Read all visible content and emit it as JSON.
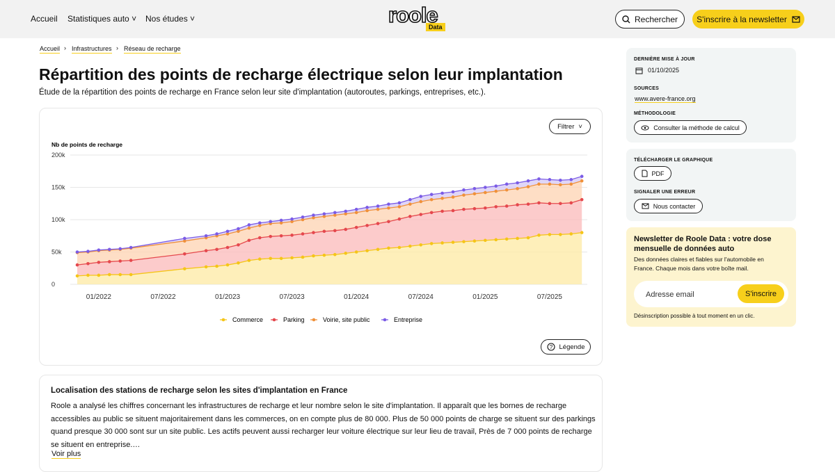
{
  "header": {
    "nav": [
      "Accueil",
      "Statistiques auto",
      "Nos études"
    ],
    "logo": "roole",
    "logo_badge": "Data",
    "search": "Rechercher",
    "newsletter_button": "S'inscrire à la newsletter"
  },
  "breadcrumbs": [
    "Accueil",
    "Infrastructures",
    "Réseau de recharge"
  ],
  "title": "Répartition des points de recharge électrique selon leur implantation",
  "subtitle": "Étude de la répartition des points de recharge en France selon leur site d'implantation (autoroutes, parkings, entreprises, etc.).",
  "chart_data": {
    "type": "area",
    "stacked": true,
    "y_label": "Nb de points de recharge",
    "filter_button": "Filtrer",
    "legend_button": "Légende",
    "x": [
      "11/2021",
      "12/2021",
      "01/2022",
      "02/2022",
      "03/2022",
      "04/2022",
      "09/2022",
      "11/2022",
      "12/2022",
      "01/2023",
      "02/2023",
      "03/2023",
      "04/2023",
      "05/2023",
      "06/2023",
      "07/2023",
      "08/2023",
      "09/2023",
      "10/2023",
      "11/2023",
      "12/2023",
      "01/2024",
      "02/2024",
      "03/2024",
      "04/2024",
      "05/2024",
      "06/2024",
      "07/2024",
      "08/2024",
      "09/2024",
      "10/2024",
      "11/2024",
      "12/2024",
      "01/2025",
      "02/2025",
      "03/2025",
      "04/2025",
      "05/2025",
      "06/2025",
      "07/2025",
      "08/2025",
      "09/2025",
      "10/2025"
    ],
    "xticks": [
      "01/2022",
      "07/2022",
      "01/2023",
      "07/2023",
      "01/2024",
      "07/2024",
      "01/2025",
      "07/2025"
    ],
    "ylim": [
      0,
      200000
    ],
    "yticks": [
      0,
      {
        "value": 50000,
        "label": "50k"
      },
      {
        "value": 100000,
        "label": "100k"
      },
      {
        "value": 150000,
        "label": "150k"
      },
      {
        "value": 200000,
        "label": "200k"
      }
    ],
    "grid": true,
    "legend": "bottom",
    "series": [
      {
        "name": "Commerce",
        "color": "#f5c518",
        "fill": "#fde9a3",
        "values": [
          13000,
          14000,
          14000,
          15000,
          15000,
          15000,
          24000,
          27000,
          28000,
          30000,
          33000,
          37000,
          39000,
          40000,
          40000,
          41000,
          42000,
          44000,
          45000,
          46000,
          48000,
          50000,
          52000,
          54000,
          56000,
          57000,
          59000,
          61000,
          63000,
          64000,
          65000,
          66000,
          67000,
          68000,
          69000,
          70000,
          71000,
          72000,
          76000,
          77000,
          77000,
          78000,
          80000
        ]
      },
      {
        "name": "Parking",
        "color": "#e5484d",
        "fill": "#fbb9b9",
        "values": [
          17000,
          18000,
          20000,
          20000,
          21000,
          22000,
          23000,
          25000,
          26000,
          27000,
          28000,
          31000,
          33000,
          34000,
          35000,
          35000,
          36000,
          36000,
          37000,
          37000,
          37000,
          38000,
          39000,
          40000,
          41000,
          44000,
          46000,
          47000,
          48000,
          49000,
          49000,
          50000,
          50000,
          50000,
          51000,
          51000,
          52000,
          52000,
          50000,
          48000,
          48000,
          48000,
          51000
        ]
      },
      {
        "name": "Voirie, site public",
        "color": "#f0913a",
        "fill": "#fdd3b2",
        "values": [
          19000,
          18000,
          18000,
          18000,
          18000,
          19000,
          20000,
          20000,
          21000,
          21000,
          21000,
          19000,
          19000,
          20000,
          20000,
          21000,
          22000,
          23000,
          23000,
          24000,
          24000,
          23000,
          23000,
          22000,
          21000,
          19000,
          19000,
          20000,
          20000,
          20000,
          21000,
          22000,
          23000,
          24000,
          24000,
          25000,
          25000,
          27000,
          29000,
          30000,
          29000,
          29000,
          29000
        ]
      },
      {
        "name": "Entreprise",
        "color": "#7b5ce6",
        "fill": "#d6c8f4",
        "values": [
          1000,
          1000,
          1000,
          1000,
          1000,
          1000,
          4000,
          3000,
          3000,
          4000,
          4000,
          5000,
          4000,
          3000,
          4000,
          4000,
          4000,
          4000,
          4000,
          4000,
          4000,
          5000,
          5000,
          5000,
          6000,
          6000,
          7000,
          8000,
          8000,
          8000,
          8000,
          8000,
          8000,
          8000,
          8000,
          9000,
          9000,
          9000,
          8000,
          7000,
          7000,
          7000,
          7000
        ]
      }
    ]
  },
  "sidebar": {
    "updated_label": "DERNIÈRE MISE À JOUR",
    "updated_date": "01/10/2025",
    "sources_label": "SOURCES",
    "source_link": "www.avere-france.org",
    "methodology_label": "MÉTHODOLOGIE",
    "methodology_button": "Consulter la méthode de calcul",
    "download_label": "TÉLÉCHARGER LE GRAPHIQUE",
    "pdf_button": "PDF",
    "error_label": "SIGNALER UNE ERREUR",
    "contact_button": "Nous contacter"
  },
  "newsletter": {
    "title": "Newsletter de Roole Data : votre dose mensuelle de données auto",
    "text": "Des données claires et fiables sur l'automobile en France. Chaque mois dans votre boîte mail.",
    "placeholder": "Adresse email",
    "button": "S'inscrire",
    "disclaimer": "Désinscription possible à tout moment en un clic."
  },
  "article": {
    "title": "Localisation des stations de recharge selon les sites d'implantation en France",
    "text": "Roole a analysé les chiffres concernant les infrastructures de recharge et leur nombre selon le site d'implantation. Il apparaît que les bornes de recharge accessibles au public se situent majoritairement dans les commerces, on en compte plus de 80 000. Plus de 50 000 points de charge se situent sur des parkings quand presque 30 000 sont sur un site public. Les actifs peuvent aussi recharger leur voiture électrique sur leur lieu de travail, Près de 7 000 points de recharge se situent en entreprise.…",
    "more": "Voir plus"
  }
}
